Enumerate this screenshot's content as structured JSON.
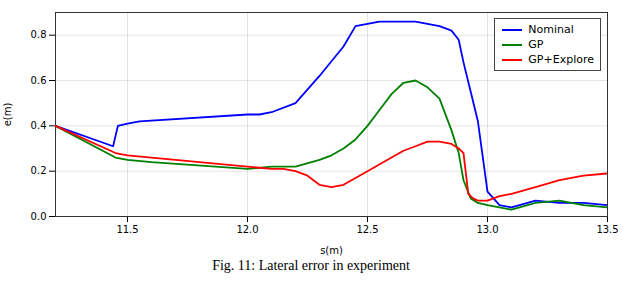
{
  "chart_data": {
    "type": "line",
    "xlabel": "s(m)",
    "ylabel": "e(m)",
    "caption": "Fig. 11: Lateral error in experiment",
    "series": [
      {
        "name": "Nominal",
        "color": "#0000ff",
        "x": [
          11.2,
          11.44,
          11.46,
          11.5,
          11.55,
          12.0,
          12.05,
          12.1,
          12.2,
          12.3,
          12.4,
          12.45,
          12.55,
          12.65,
          12.7,
          12.75,
          12.8,
          12.85,
          12.88,
          12.9,
          12.93,
          12.96,
          13.0,
          13.05,
          13.1,
          13.2,
          13.3,
          13.4,
          13.5
        ],
        "values": [
          0.4,
          0.31,
          0.4,
          0.41,
          0.42,
          0.45,
          0.45,
          0.46,
          0.5,
          0.62,
          0.75,
          0.84,
          0.86,
          0.86,
          0.86,
          0.85,
          0.84,
          0.82,
          0.78,
          0.68,
          0.55,
          0.42,
          0.11,
          0.05,
          0.04,
          0.07,
          0.06,
          0.06,
          0.05
        ]
      },
      {
        "name": "GP",
        "color": "#008000",
        "x": [
          11.2,
          11.45,
          11.5,
          11.6,
          12.0,
          12.1,
          12.15,
          12.2,
          12.3,
          12.35,
          12.4,
          12.45,
          12.5,
          12.55,
          12.6,
          12.65,
          12.7,
          12.75,
          12.8,
          12.85,
          12.88,
          12.9,
          12.93,
          12.96,
          13.0,
          13.05,
          13.1,
          13.2,
          13.3,
          13.4,
          13.5
        ],
        "values": [
          0.4,
          0.26,
          0.25,
          0.24,
          0.21,
          0.22,
          0.22,
          0.22,
          0.25,
          0.27,
          0.3,
          0.34,
          0.4,
          0.47,
          0.54,
          0.59,
          0.6,
          0.57,
          0.52,
          0.38,
          0.28,
          0.16,
          0.08,
          0.06,
          0.05,
          0.04,
          0.03,
          0.06,
          0.07,
          0.05,
          0.04
        ]
      },
      {
        "name": "GP+Explore",
        "color": "#ff0000",
        "x": [
          11.2,
          11.45,
          11.5,
          11.6,
          12.0,
          12.1,
          12.15,
          12.2,
          12.25,
          12.3,
          12.35,
          12.4,
          12.5,
          12.6,
          12.65,
          12.7,
          12.75,
          12.8,
          12.85,
          12.88,
          12.9,
          12.92,
          12.94,
          12.96,
          13.0,
          13.05,
          13.1,
          13.2,
          13.3,
          13.4,
          13.5
        ],
        "values": [
          0.4,
          0.28,
          0.27,
          0.26,
          0.22,
          0.21,
          0.21,
          0.2,
          0.18,
          0.14,
          0.13,
          0.14,
          0.2,
          0.26,
          0.29,
          0.31,
          0.33,
          0.33,
          0.32,
          0.3,
          0.28,
          0.1,
          0.08,
          0.07,
          0.07,
          0.09,
          0.1,
          0.13,
          0.16,
          0.18,
          0.19
        ]
      }
    ],
    "xlim": [
      11.2,
      13.5
    ],
    "ylim": [
      0.0,
      0.9
    ],
    "xticks": [
      11.5,
      {
        "value": 12.0,
        "label": "12.0"
      },
      12.5,
      {
        "value": 13.0,
        "label": "13.0"
      },
      13.5
    ],
    "yticks": [
      {
        "value": 0.0,
        "label": "0.0"
      },
      0.2,
      0.4,
      0.6,
      0.8
    ],
    "grid": true,
    "legend": "upper right"
  }
}
